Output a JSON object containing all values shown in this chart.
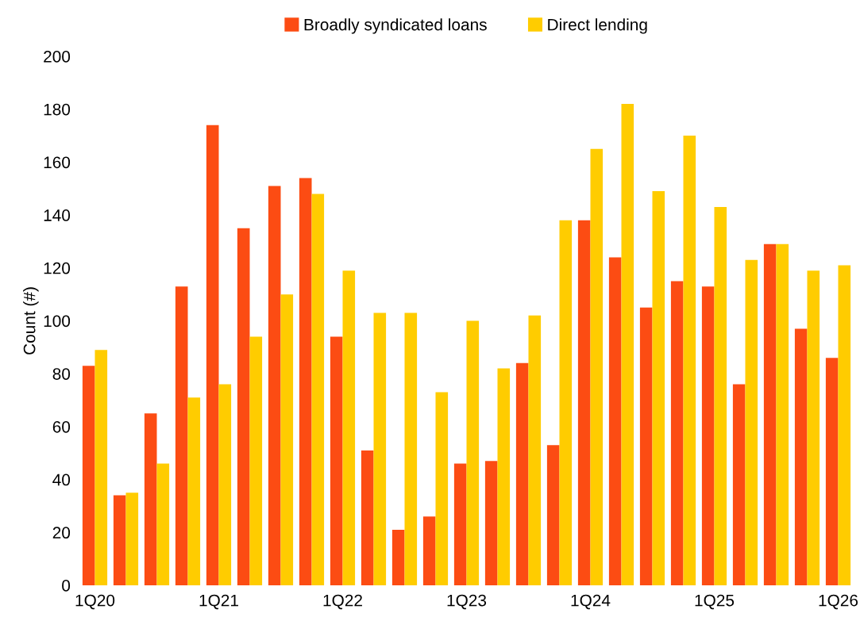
{
  "chart_data": {
    "type": "bar",
    "ylabel": "Count (#)",
    "categories": [
      "1Q20",
      null,
      null,
      null,
      "1Q21",
      null,
      null,
      null,
      "1Q22",
      null,
      null,
      null,
      "1Q23",
      null,
      null,
      null,
      "1Q24",
      null,
      null,
      null,
      "1Q25",
      null,
      null,
      null,
      "1Q26"
    ],
    "series": [
      {
        "name": "Broadly syndicated loans",
        "color": "#fc4c13",
        "values": [
          83,
          34,
          65,
          113,
          174,
          135,
          151,
          154,
          94,
          51,
          21,
          26,
          46,
          47,
          84,
          53,
          138,
          124,
          105,
          115,
          113,
          76,
          129,
          97,
          86
        ]
      },
      {
        "name": "Direct lending",
        "color": "#ffcc00",
        "values": [
          89,
          35,
          46,
          71,
          76,
          94,
          110,
          148,
          119,
          103,
          103,
          73,
          100,
          82,
          102,
          138,
          165,
          182,
          149,
          170,
          143,
          123,
          129,
          119,
          121
        ]
      }
    ],
    "ylim": [
      0,
      200
    ],
    "yticks": [
      0,
      20,
      40,
      60,
      80,
      100,
      120,
      140,
      160,
      180,
      200
    ],
    "grid": false,
    "legend": "top"
  }
}
